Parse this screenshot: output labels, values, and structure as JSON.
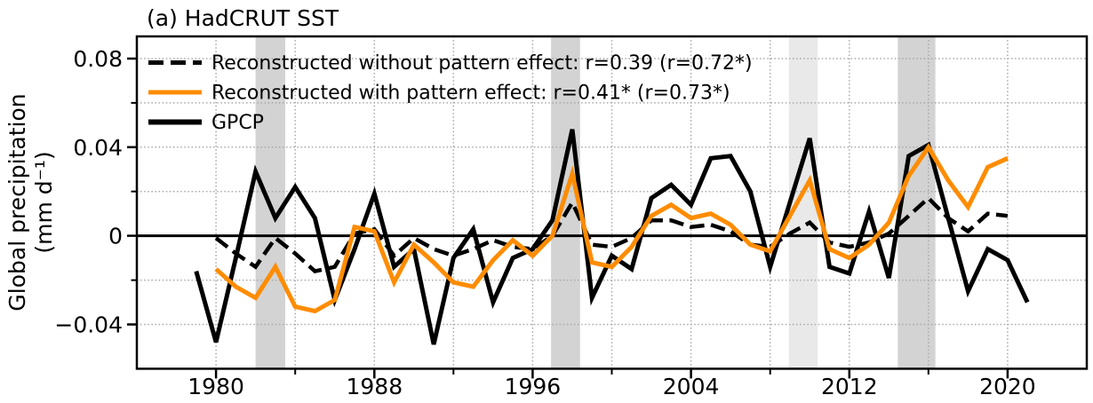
{
  "title": "(a) HadCRUT SST",
  "chart_data": {
    "type": "line",
    "title": "(a) HadCRUT SST",
    "ylabel_line1": "Global precipitation",
    "ylabel_line2": "(mm d⁻¹)",
    "xlim": [
      1976,
      2024
    ],
    "ylim": [
      -0.06,
      0.09
    ],
    "grid": true,
    "legend_position": "upper left",
    "x_major_ticks": [
      1980,
      1988,
      1996,
      2004,
      2012,
      2020
    ],
    "x_major_tick_labels": [
      "1980",
      "1988",
      "1996",
      "2004",
      "2012",
      "2020"
    ],
    "x_minor_ticks": [
      1984,
      1992,
      2000,
      2008,
      2016
    ],
    "y_major_ticks": [
      0.08,
      0.04,
      0,
      -0.04
    ],
    "y_major_tick_labels": [
      "0.08",
      "0.04",
      "0",
      "−0.04"
    ],
    "y_minor_ticks": [
      0.06,
      0.02,
      -0.02
    ],
    "grid_x_years": [
      1980,
      1984,
      1988,
      1992,
      1996,
      2000,
      2004,
      2008,
      2012,
      2016,
      2020
    ],
    "grid_y_values": [
      0.08,
      0.06,
      0.04,
      0.02,
      0,
      -0.02,
      -0.04
    ],
    "colors": {
      "gpcp": "#000000",
      "without_pattern_effect": "#000000",
      "with_pattern_effect": "#ff8c00",
      "gridline": "#a8a8a8",
      "zero_line": "#000000",
      "band_gray": "#d3d3d3",
      "band_light_gray": "#e9e9e9"
    },
    "shaded_bands": [
      {
        "name": "band-1982-1983",
        "x_start": 1982.0,
        "x_end": 1983.5,
        "color": "#d3d3d3"
      },
      {
        "name": "band-1997-1998",
        "x_start": 1996.93,
        "x_end": 1998.4,
        "color": "#d3d3d3"
      },
      {
        "name": "band-2009-2010",
        "x_start": 2008.95,
        "x_end": 2010.4,
        "color": "#e9e9e9"
      },
      {
        "name": "band-2014-2016",
        "x_start": 2014.45,
        "x_end": 2016.35,
        "color": "#d3d3d3"
      }
    ],
    "series": [
      {
        "name": "Reconstructed without pattern effect: r=0.39 (r=0.72*)",
        "id": "reconstructed-without-pattern-effect",
        "style": "dashed",
        "color": "#000000",
        "linewidth": 4.5,
        "x": [
          1980,
          1981,
          1982,
          1983,
          1984,
          1985,
          1986,
          1987,
          1988,
          1989,
          1990,
          1991,
          1992,
          1993,
          1994,
          1995,
          1996,
          1997,
          1998,
          1999,
          2000,
          2001,
          2002,
          2003,
          2004,
          2005,
          2006,
          2007,
          2008,
          2009,
          2010,
          2011,
          2012,
          2013,
          2014,
          2015,
          2016,
          2017,
          2018,
          2019,
          2020
        ],
        "values": [
          -0.001,
          -0.008,
          -0.014,
          -0.001,
          -0.008,
          -0.016,
          -0.014,
          0.001,
          0.003,
          -0.009,
          -0.001,
          -0.006,
          -0.009,
          -0.006,
          -0.002,
          -0.005,
          -0.006,
          0.0,
          0.015,
          -0.004,
          -0.005,
          -0.001,
          0.007,
          0.007,
          0.004,
          0.005,
          0.002,
          -0.004,
          -0.005,
          0.001,
          0.006,
          -0.003,
          -0.005,
          -0.003,
          0.001,
          0.009,
          0.017,
          0.008,
          0.002,
          0.01,
          0.009
        ]
      },
      {
        "name": "Reconstructed with pattern effect: r=0.41* (r=0.73*)",
        "id": "reconstructed-with-pattern-effect",
        "style": "solid",
        "color": "#ff8c00",
        "linewidth": 5,
        "x": [
          1980,
          1981,
          1982,
          1983,
          1984,
          1985,
          1986,
          1987,
          1988,
          1989,
          1990,
          1991,
          1992,
          1993,
          1994,
          1995,
          1996,
          1997,
          1998,
          1999,
          2000,
          2001,
          2002,
          2003,
          2004,
          2005,
          2006,
          2007,
          2008,
          2009,
          2010,
          2011,
          2012,
          2013,
          2014,
          2015,
          2016,
          2017,
          2018,
          2019,
          2020
        ],
        "values": [
          -0.015,
          -0.023,
          -0.028,
          -0.014,
          -0.032,
          -0.034,
          -0.029,
          0.004,
          0.002,
          -0.021,
          -0.004,
          -0.012,
          -0.021,
          -0.023,
          -0.011,
          -0.002,
          -0.009,
          0.0,
          0.028,
          -0.012,
          -0.014,
          -0.005,
          0.009,
          0.014,
          0.008,
          0.01,
          0.005,
          -0.004,
          -0.007,
          0.009,
          0.025,
          -0.006,
          -0.01,
          -0.004,
          0.006,
          0.027,
          0.04,
          0.025,
          0.013,
          0.031,
          0.035
        ]
      },
      {
        "name": "GPCP",
        "id": "gpcp",
        "style": "solid",
        "color": "#000000",
        "linewidth": 5,
        "x": [
          1979,
          1980,
          1981,
          1982,
          1983,
          1984,
          1985,
          1986,
          1987,
          1988,
          1989,
          1990,
          1991,
          1992,
          1993,
          1994,
          1995,
          1996,
          1997,
          1998,
          1999,
          2000,
          2001,
          2002,
          2003,
          2004,
          2005,
          2006,
          2007,
          2008,
          2009,
          2010,
          2011,
          2012,
          2013,
          2014,
          2015,
          2016,
          2017,
          2018,
          2019,
          2020,
          2021
        ],
        "values": [
          -0.016,
          -0.048,
          -0.01,
          0.029,
          0.008,
          0.022,
          0.008,
          -0.029,
          -0.006,
          0.019,
          -0.014,
          -0.006,
          -0.049,
          -0.01,
          0.003,
          -0.03,
          -0.01,
          -0.006,
          0.007,
          0.048,
          -0.028,
          -0.009,
          -0.015,
          0.017,
          0.023,
          0.014,
          0.035,
          0.036,
          0.02,
          -0.014,
          0.015,
          0.044,
          -0.014,
          -0.017,
          0.011,
          -0.019,
          0.036,
          0.041,
          0.008,
          -0.025,
          -0.006,
          -0.011,
          -0.03
        ]
      }
    ]
  }
}
